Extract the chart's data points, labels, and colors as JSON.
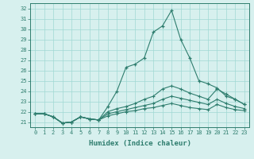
{
  "x_hours": [
    0,
    1,
    2,
    3,
    4,
    5,
    6,
    7,
    8,
    9,
    10,
    11,
    12,
    13,
    14,
    15,
    16,
    17,
    18,
    19,
    20,
    21,
    22,
    23
  ],
  "line1": [
    21.8,
    21.8,
    21.5,
    20.9,
    21.0,
    21.5,
    21.3,
    21.2,
    22.5,
    24.0,
    26.3,
    26.6,
    27.2,
    29.7,
    30.3,
    31.8,
    29.0,
    27.2,
    25.0,
    24.7,
    24.3,
    23.5,
    23.2,
    22.7
  ],
  "line2": [
    21.8,
    21.8,
    21.5,
    20.9,
    21.0,
    21.5,
    21.3,
    21.2,
    22.0,
    22.3,
    22.5,
    22.8,
    23.2,
    23.5,
    24.2,
    24.5,
    24.2,
    23.8,
    23.5,
    23.2,
    24.2,
    23.7,
    23.2,
    22.7
  ],
  "line3": [
    21.8,
    21.8,
    21.5,
    20.9,
    21.0,
    21.5,
    21.3,
    21.2,
    21.8,
    22.0,
    22.2,
    22.4,
    22.6,
    22.8,
    23.2,
    23.5,
    23.3,
    23.1,
    22.9,
    22.7,
    23.2,
    22.8,
    22.5,
    22.3
  ],
  "line4": [
    21.8,
    21.8,
    21.5,
    20.9,
    21.0,
    21.5,
    21.3,
    21.2,
    21.6,
    21.8,
    22.0,
    22.1,
    22.3,
    22.4,
    22.6,
    22.8,
    22.6,
    22.4,
    22.3,
    22.2,
    22.7,
    22.4,
    22.2,
    22.1
  ],
  "line_color": "#2e7d6e",
  "bg_color": "#d7f0ee",
  "grid_color": "#a0d8d3",
  "xlabel": "Humidex (Indice chaleur)",
  "ylim": [
    20.5,
    32.5
  ],
  "xlim": [
    -0.5,
    23.5
  ],
  "yticks": [
    21,
    22,
    23,
    24,
    25,
    26,
    27,
    28,
    29,
    30,
    31,
    32
  ],
  "xticks": [
    0,
    1,
    2,
    3,
    4,
    5,
    6,
    7,
    8,
    9,
    10,
    11,
    12,
    13,
    14,
    15,
    16,
    17,
    18,
    19,
    20,
    21,
    22,
    23
  ]
}
